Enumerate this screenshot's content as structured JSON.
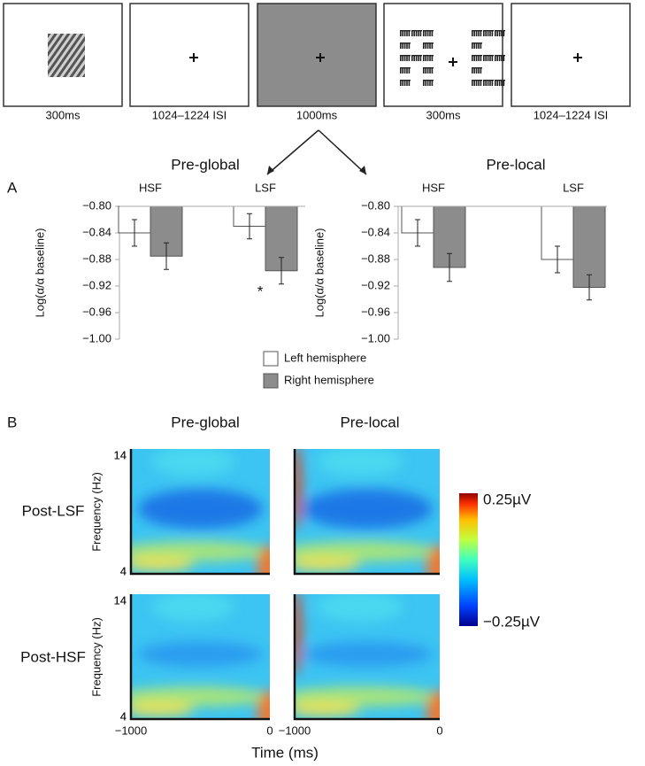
{
  "sequence": [
    "300ms",
    "1024–1224 ISI",
    "1000ms",
    "300ms",
    "1024–1224 ISI"
  ],
  "panel_a_label": "A",
  "chart_data": [
    {
      "type": "bar",
      "title": "Pre-global",
      "ylabel": "Log(α/α baseline)",
      "categories": [
        "HSF",
        "LSF"
      ],
      "series": [
        {
          "name": "Left hemisphere",
          "color": "#ffffff",
          "values": [
            -0.84,
            -0.83
          ],
          "errors": [
            0.02,
            0.019
          ]
        },
        {
          "name": "Right hemisphere",
          "color": "#8c8c8c",
          "values": [
            -0.875,
            -0.897
          ],
          "errors": [
            0.02,
            0.02
          ]
        }
      ],
      "annotation": "*",
      "ylim": [
        -1.0,
        -0.8
      ],
      "yticks": [
        {
          "value": -0.8,
          "label": "−0.80"
        },
        {
          "value": -0.84,
          "label": "−0.84"
        },
        {
          "value": -0.88,
          "label": "−0.88"
        },
        {
          "value": -0.92,
          "label": "−0.92"
        },
        {
          "value": -0.96,
          "label": "−0.96"
        },
        {
          "value": -1.0,
          "label": "−1.00"
        }
      ]
    },
    {
      "type": "bar",
      "title": "Pre-local",
      "ylabel": "Log(α/α baseline)",
      "categories": [
        "HSF",
        "LSF"
      ],
      "series": [
        {
          "color": "#ffffff",
          "values": [
            -0.84,
            -0.88
          ],
          "errors": [
            0.02,
            0.02
          ]
        },
        {
          "color": "#8c8c8c",
          "values": [
            -0.892,
            -0.922
          ],
          "errors": [
            0.021,
            0.019
          ]
        }
      ],
      "ylim": [
        -1.0,
        -0.8
      ],
      "yticks": [
        {
          "value": -0.8,
          "label": "−0.80"
        },
        {
          "value": -0.84,
          "label": "−0.84"
        },
        {
          "value": -0.88,
          "label": "−0.88"
        },
        {
          "value": -0.92,
          "label": "−0.92"
        },
        {
          "value": -0.96,
          "label": "−0.96"
        },
        {
          "value": -1.0,
          "label": "−1.00"
        }
      ]
    }
  ],
  "panel_b": {
    "label": "B",
    "columns": [
      "Pre-global",
      "Pre-local"
    ],
    "rows": [
      "Post-LSF",
      "Post-HSF"
    ],
    "ylabel": "Frequency (Hz)",
    "xlabel": "Time (ms)",
    "xlim": [
      -1000,
      0
    ],
    "xticks": [
      {
        "value": -1000,
        "label": "−1000"
      },
      0
    ],
    "ylim": [
      4,
      14
    ],
    "yticks": [
      4,
      14
    ],
    "colorbar": [
      {
        "value": 0.25,
        "label": "0.25µV"
      },
      {
        "value": -0.25,
        "label": "−0.25µV"
      }
    ]
  }
}
